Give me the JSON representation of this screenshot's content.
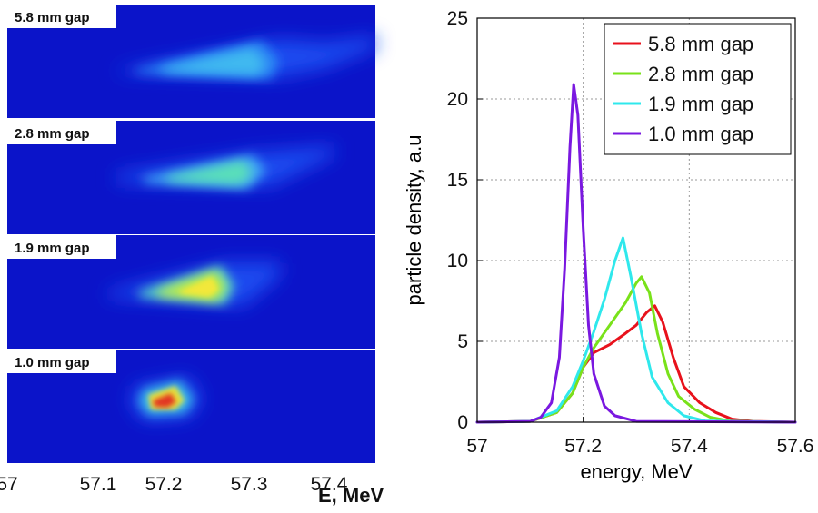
{
  "colors": {
    "background_blue": "#0b14c9",
    "series": [
      "#e8121c",
      "#79e21a",
      "#2fe8ec",
      "#7a18e0"
    ]
  },
  "left": {
    "images": [
      {
        "label": "5.8 mm gap"
      },
      {
        "label": "2.8 mm gap"
      },
      {
        "label": "1.9 mm gap"
      },
      {
        "label": "1.0 mm gap"
      }
    ],
    "x_ticks": [
      "57",
      "57.1",
      "57.2",
      "57.3",
      "57.4"
    ],
    "x_label": "E, MeV"
  },
  "chart_data": {
    "type": "line",
    "xlabel": "energy, MeV",
    "ylabel": "particle density, a.u",
    "xlim": [
      57,
      57.6
    ],
    "ylim": [
      0,
      25
    ],
    "x_ticks": [
      "57",
      "57.2",
      "57.4",
      "57.6"
    ],
    "y_ticks": [
      "0",
      "5",
      "10",
      "15",
      "20",
      "25"
    ],
    "grid": true,
    "legend_position": "top-right",
    "series": [
      {
        "name": "5.8 mm gap",
        "color": "#e8121c",
        "points": [
          [
            57.0,
            0
          ],
          [
            57.1,
            0.05
          ],
          [
            57.15,
            0.6
          ],
          [
            57.18,
            1.8
          ],
          [
            57.2,
            3.4
          ],
          [
            57.22,
            4.3
          ],
          [
            57.25,
            4.8
          ],
          [
            57.28,
            5.5
          ],
          [
            57.3,
            6.0
          ],
          [
            57.32,
            6.8
          ],
          [
            57.335,
            7.2
          ],
          [
            57.35,
            6.2
          ],
          [
            57.37,
            4.0
          ],
          [
            57.39,
            2.2
          ],
          [
            57.42,
            1.2
          ],
          [
            57.45,
            0.6
          ],
          [
            57.48,
            0.2
          ],
          [
            57.52,
            0.05
          ],
          [
            57.6,
            0
          ]
        ]
      },
      {
        "name": "2.8 mm gap",
        "color": "#79e21a",
        "points": [
          [
            57.0,
            0
          ],
          [
            57.1,
            0.05
          ],
          [
            57.15,
            0.6
          ],
          [
            57.18,
            1.8
          ],
          [
            57.2,
            3.4
          ],
          [
            57.22,
            4.6
          ],
          [
            57.25,
            6.0
          ],
          [
            57.28,
            7.4
          ],
          [
            57.3,
            8.6
          ],
          [
            57.31,
            9.0
          ],
          [
            57.325,
            8.0
          ],
          [
            57.34,
            5.5
          ],
          [
            57.36,
            3.0
          ],
          [
            57.38,
            1.6
          ],
          [
            57.41,
            0.8
          ],
          [
            57.44,
            0.3
          ],
          [
            57.48,
            0.05
          ],
          [
            57.6,
            0
          ]
        ]
      },
      {
        "name": "1.9 mm gap",
        "color": "#2fe8ec",
        "points": [
          [
            57.0,
            0
          ],
          [
            57.1,
            0.05
          ],
          [
            57.15,
            0.7
          ],
          [
            57.18,
            2.2
          ],
          [
            57.2,
            3.8
          ],
          [
            57.22,
            5.6
          ],
          [
            57.24,
            7.6
          ],
          [
            57.26,
            10.0
          ],
          [
            57.275,
            11.4
          ],
          [
            57.29,
            9.0
          ],
          [
            57.31,
            5.5
          ],
          [
            57.33,
            2.8
          ],
          [
            57.36,
            1.2
          ],
          [
            57.39,
            0.4
          ],
          [
            57.43,
            0.08
          ],
          [
            57.6,
            0
          ]
        ]
      },
      {
        "name": "1.0 mm gap",
        "color": "#7a18e0",
        "points": [
          [
            57.0,
            0
          ],
          [
            57.1,
            0.05
          ],
          [
            57.12,
            0.3
          ],
          [
            57.14,
            1.2
          ],
          [
            57.155,
            4.0
          ],
          [
            57.165,
            9.5
          ],
          [
            57.175,
            17.0
          ],
          [
            57.182,
            20.9
          ],
          [
            57.19,
            19.0
          ],
          [
            57.2,
            12.0
          ],
          [
            57.21,
            6.0
          ],
          [
            57.22,
            3.0
          ],
          [
            57.24,
            1.0
          ],
          [
            57.26,
            0.4
          ],
          [
            57.3,
            0.05
          ],
          [
            57.6,
            0
          ]
        ]
      }
    ]
  }
}
